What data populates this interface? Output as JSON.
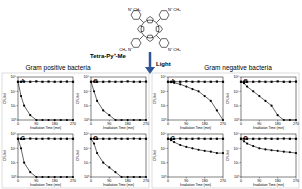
{
  "figure": {
    "molecule_label": "Tetra-Py⁺-Me",
    "nitrogen": "N⁺",
    "methyl": "CH₃",
    "arrow_label": "Light",
    "groups": [
      "Gram positive bacteria",
      "Gram negative bacteria"
    ]
  },
  "chart_data": [
    {
      "type": "line",
      "title": "A",
      "x_label": "Irradiation Time (min)",
      "y_label": "CFU/ml",
      "x": [
        0,
        15,
        30,
        60,
        90,
        120,
        150,
        180,
        210,
        240,
        270
      ],
      "xlim": [
        0,
        270
      ],
      "xticks": [
        0,
        90,
        180,
        270
      ],
      "ylim": [
        1,
        1000000000.0
      ],
      "yticks": [
        {
          "value": 1,
          "label": "10⁰"
        },
        {
          "value": 1000,
          "label": "10³"
        },
        {
          "value": 1000000,
          "label": "10⁶"
        },
        {
          "value": 1000000000,
          "label": "10⁹"
        }
      ],
      "log": "y",
      "series": [
        {
          "color": "#000000",
          "marker": "square",
          "values": [
            100000000.0,
            100000000.0,
            110000000.0,
            100000000.0,
            120000000.0,
            100000000.0,
            110000000.0,
            100000000.0,
            100000000.0,
            110000000.0,
            100000000.0
          ]
        },
        {
          "color": "#000000",
          "marker": "circle",
          "values": [
            100000000.0,
            100000.0,
            1000.0,
            10,
            1,
            1,
            1,
            1,
            1,
            1,
            1
          ]
        }
      ]
    },
    {
      "type": "line",
      "title": "B",
      "x_label": "Irradiation Time (min)",
      "y_label": "CFU/ml",
      "x": [
        0,
        15,
        30,
        60,
        90,
        120,
        150,
        180,
        210,
        240,
        270
      ],
      "xlim": [
        0,
        270
      ],
      "xticks": [
        0,
        90,
        180,
        270
      ],
      "ylim": [
        1,
        1000000000.0
      ],
      "yticks": [
        {
          "value": 1,
          "label": "10⁰"
        },
        {
          "value": 1000,
          "label": "10³"
        },
        {
          "value": 1000000,
          "label": "10⁶"
        },
        {
          "value": 1000000000,
          "label": "10⁹"
        }
      ],
      "log": "y",
      "series": [
        {
          "color": "#000000",
          "marker": "square",
          "values": [
            100000000.0,
            110000000.0,
            100000000.0,
            100000000.0,
            110000000.0,
            100000000.0,
            100000000.0,
            120000000.0,
            100000000.0,
            100000000.0,
            110000000.0
          ]
        },
        {
          "color": "#000000",
          "marker": "circle",
          "values": [
            100000000.0,
            1000000.0,
            10000.0,
            100,
            10,
            1,
            1,
            1,
            1,
            1,
            1
          ]
        }
      ]
    },
    {
      "type": "line",
      "title": "C",
      "x_label": "Irradiation Time (min)",
      "y_label": "CFU/ml",
      "x": [
        0,
        15,
        30,
        60,
        90,
        120,
        150,
        180,
        210,
        240,
        270
      ],
      "xlim": [
        0,
        270
      ],
      "xticks": [
        0,
        90,
        180,
        270
      ],
      "ylim": [
        1,
        1000000000.0
      ],
      "yticks": [
        {
          "value": 1,
          "label": "10⁰"
        },
        {
          "value": 1000,
          "label": "10³"
        },
        {
          "value": 1000000,
          "label": "10⁶"
        },
        {
          "value": 1000000000,
          "label": "10⁹"
        }
      ],
      "log": "y",
      "series": [
        {
          "color": "#000000",
          "marker": "square",
          "values": [
            100000000.0,
            100000000.0,
            100000000.0,
            110000000.0,
            100000000.0,
            100000000.0,
            110000000.0,
            100000000.0,
            100000000.0,
            100000000.0,
            100000000.0
          ]
        },
        {
          "color": "#000000",
          "marker": "circle",
          "values": [
            100000000.0,
            1000000.0,
            1000.0,
            10,
            1,
            1,
            1,
            1,
            1,
            1,
            1
          ]
        }
      ]
    },
    {
      "type": "line",
      "title": "D",
      "x_label": "Irradiation Time (min)",
      "y_label": "CFU/ml",
      "x": [
        0,
        15,
        30,
        60,
        90,
        120,
        150,
        180,
        210,
        240,
        270
      ],
      "xlim": [
        0,
        270
      ],
      "xticks": [
        0,
        90,
        180,
        270
      ],
      "ylim": [
        1,
        1000000000.0
      ],
      "yticks": [
        {
          "value": 1,
          "label": "10⁰"
        },
        {
          "value": 1000,
          "label": "10³"
        },
        {
          "value": 1000000,
          "label": "10⁶"
        },
        {
          "value": 1000000000,
          "label": "10⁹"
        }
      ],
      "log": "y",
      "series": [
        {
          "color": "#000000",
          "marker": "square",
          "values": [
            100000000.0,
            110000000.0,
            100000000.0,
            100000000.0,
            100000000.0,
            110000000.0,
            100000000.0,
            100000000.0,
            110000000.0,
            100000000.0,
            100000000.0
          ]
        },
        {
          "color": "#000000",
          "marker": "circle",
          "values": [
            100000000.0,
            10000000.0,
            100000.0,
            1000.0,
            100,
            10,
            1,
            1,
            1,
            1,
            1
          ]
        }
      ]
    },
    {
      "type": "line",
      "title": "A",
      "x_label": "Irradiation Time (min)",
      "y_label": "CFU/ml",
      "x": [
        0,
        15,
        30,
        60,
        90,
        120,
        150,
        180,
        210,
        240,
        270
      ],
      "xlim": [
        0,
        270
      ],
      "xticks": [
        0,
        90,
        180,
        270
      ],
      "ylim": [
        1,
        1000000000.0
      ],
      "yticks": [
        {
          "value": 1,
          "label": "10⁰"
        },
        {
          "value": 1000,
          "label": "10³"
        },
        {
          "value": 1000000,
          "label": "10⁶"
        },
        {
          "value": 1000000000,
          "label": "10⁹"
        }
      ],
      "log": "y",
      "series": [
        {
          "color": "#000000",
          "marker": "square",
          "values": [
            100000000.0,
            100000000.0,
            110000000.0,
            100000000.0,
            120000000.0,
            100000000.0,
            110000000.0,
            100000000.0,
            100000000.0,
            110000000.0,
            100000000.0
          ]
        },
        {
          "color": "#000000",
          "marker": "circle",
          "values": [
            100000000.0,
            80000000.0,
            60000000.0,
            30000000.0,
            10000000.0,
            3000000.0,
            1000000.0,
            100000.0,
            10000.0,
            100,
            1
          ]
        }
      ]
    },
    {
      "type": "line",
      "title": "B",
      "x_label": "Irradiation Time (min)",
      "y_label": "CFU/ml",
      "x": [
        0,
        15,
        30,
        60,
        90,
        120,
        150,
        180,
        210,
        240,
        270
      ],
      "xlim": [
        0,
        270
      ],
      "xticks": [
        0,
        90,
        180,
        270
      ],
      "ylim": [
        1,
        1000000000.0
      ],
      "yticks": [
        {
          "value": 1,
          "label": "10⁰"
        },
        {
          "value": 1000,
          "label": "10³"
        },
        {
          "value": 1000000,
          "label": "10⁶"
        },
        {
          "value": 1000000000,
          "label": "10⁹"
        }
      ],
      "log": "y",
      "series": [
        {
          "color": "#000000",
          "marker": "square",
          "values": [
            100000000.0,
            110000000.0,
            100000000.0,
            100000000.0,
            110000000.0,
            100000000.0,
            100000000.0,
            120000000.0,
            100000000.0,
            100000000.0,
            110000000.0
          ]
        },
        {
          "color": "#000000",
          "marker": "circle",
          "values": [
            100000000.0,
            50000000.0,
            10000000.0,
            1000000.0,
            100000.0,
            10000.0,
            1000,
            10,
            1,
            1,
            1
          ]
        }
      ]
    },
    {
      "type": "line",
      "title": "C",
      "x_label": "Irradiation Time (min)",
      "y_label": "CFU/ml",
      "x": [
        0,
        15,
        30,
        60,
        90,
        120,
        150,
        180,
        210,
        240,
        270
      ],
      "xlim": [
        0,
        270
      ],
      "xticks": [
        0,
        90,
        180,
        270
      ],
      "ylim": [
        1,
        1000000000.0
      ],
      "yticks": [
        {
          "value": 1,
          "label": "10⁰"
        },
        {
          "value": 1000,
          "label": "10³"
        },
        {
          "value": 1000000,
          "label": "10⁶"
        },
        {
          "value": 1000000000,
          "label": "10⁹"
        }
      ],
      "log": "y",
      "series": [
        {
          "color": "#000000",
          "marker": "square",
          "values": [
            100000000.0,
            100000000.0,
            100000000.0,
            110000000.0,
            100000000.0,
            100000000.0,
            110000000.0,
            100000000.0,
            100000000.0,
            100000000.0,
            100000000.0
          ]
        },
        {
          "color": "#000000",
          "marker": "circle",
          "values": [
            100000000.0,
            50000000.0,
            20000000.0,
            5000000.0,
            2000000.0,
            1000000.0,
            500000.0,
            300000.0,
            200000.0,
            100000.0,
            100000.0
          ]
        }
      ]
    },
    {
      "type": "line",
      "title": "D",
      "x_label": "Irradiation Time (min)",
      "y_label": "CFU/ml",
      "x": [
        0,
        15,
        30,
        60,
        90,
        120,
        150,
        180,
        210,
        240,
        270
      ],
      "xlim": [
        0,
        270
      ],
      "xticks": [
        0,
        90,
        180,
        270
      ],
      "ylim": [
        1,
        1000000000.0
      ],
      "yticks": [
        {
          "value": 1,
          "label": "10⁰"
        },
        {
          "value": 1000,
          "label": "10³"
        },
        {
          "value": 1000000,
          "label": "10⁶"
        },
        {
          "value": 1000000000,
          "label": "10⁹"
        }
      ],
      "log": "y",
      "series": [
        {
          "color": "#000000",
          "marker": "square",
          "values": [
            100000000.0,
            110000000.0,
            100000000.0,
            100000000.0,
            100000000.0,
            110000000.0,
            100000000.0,
            100000000.0,
            110000000.0,
            100000000.0,
            100000000.0
          ]
        },
        {
          "color": "#000000",
          "marker": "circle",
          "values": [
            100000000.0,
            30000000.0,
            10000000.0,
            3000000.0,
            1000000.0,
            600000.0,
            400000.0,
            300000.0,
            200000.0,
            150000.0,
            100000.0
          ]
        }
      ]
    }
  ]
}
